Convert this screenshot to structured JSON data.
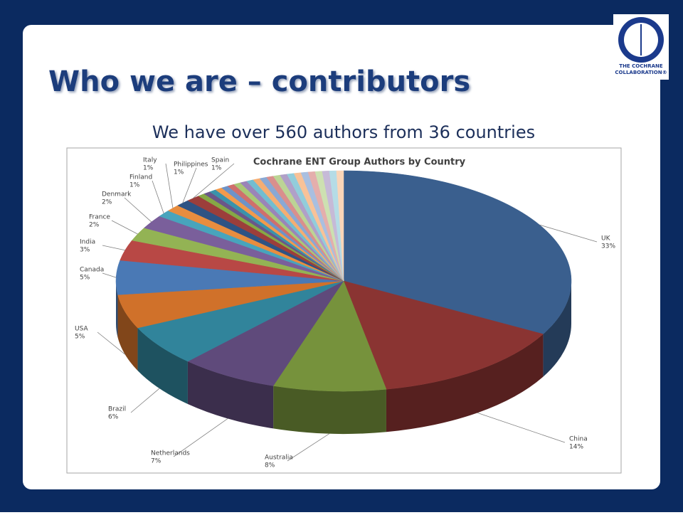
{
  "slide": {
    "title": "Who we are – contributors",
    "subtitle": "We have over 560 authors from 36 countries",
    "logo_lines": [
      "THE COCHRANE",
      "COLLABORATION®"
    ]
  },
  "chart_data": {
    "type": "pie",
    "title": "Cochrane ENT Group Authors by Country",
    "categories": [
      "UK",
      "China",
      "Australia",
      "Netherlands",
      "Brazil",
      "USA",
      "Canada",
      "India",
      "France",
      "Denmark",
      "Finland",
      "Italy",
      "Philippines",
      "Spain",
      null,
      null,
      null,
      null,
      null,
      null,
      null,
      null,
      null,
      null,
      null,
      null,
      null,
      null,
      null,
      null,
      null,
      null,
      null,
      null,
      null,
      null
    ],
    "values": [
      33,
      14,
      8,
      7,
      6,
      5,
      5,
      3,
      2,
      2,
      1,
      1,
      1,
      1,
      0.5,
      0.5,
      0.5,
      0.5,
      0.5,
      0.5,
      0.5,
      0.5,
      0.5,
      0.5,
      0.5,
      0.5,
      0.5,
      0.5,
      0.5,
      0.5,
      0.5,
      0.5,
      0.5,
      0.5,
      0.5,
      0.5
    ],
    "value_labels": [
      "33%",
      "14%",
      "8%",
      "7%",
      "6%",
      "5%",
      "5%",
      "3%",
      "2%",
      "2%",
      "1%",
      "1%",
      "1%",
      "1%",
      null,
      null,
      null,
      null,
      null,
      null,
      null,
      null,
      null,
      null,
      null,
      null,
      null,
      null,
      null,
      null,
      null,
      null,
      null,
      null,
      null,
      null
    ],
    "colors": [
      "#3a5f8e",
      "#8a3432",
      "#76923c",
      "#5f4a7b",
      "#31849b",
      "#d0712a",
      "#4a79b5",
      "#b84845",
      "#93b354",
      "#7a5f9b",
      "#48a4bc",
      "#e88d3f",
      "#2e5384",
      "#9c3e3b",
      "#86a845",
      "#6a5689",
      "#3a93ab",
      "#f29a4c",
      "#6d93c8",
      "#cf6f6c",
      "#a9c876",
      "#9a84b8",
      "#72bdd0",
      "#f5ad72",
      "#8aa8d4",
      "#d98f8d",
      "#bcd495",
      "#b0a0c8",
      "#92cddb",
      "#f8c298",
      "#a9bfe0",
      "#e4aeac",
      "#cde0b1",
      "#c6bad7",
      "#b5dce6",
      "#fad5b8"
    ]
  }
}
